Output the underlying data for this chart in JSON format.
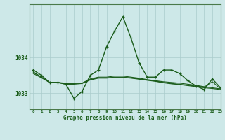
{
  "title": "Graphe pression niveau de la mer (hPa)",
  "background_color": "#cde8e8",
  "grid_color": "#aacccc",
  "line_color": "#1a5c1a",
  "xlim": [
    -0.5,
    23
  ],
  "ylim": [
    1032.55,
    1035.5
  ],
  "yticks": [
    1033,
    1034
  ],
  "xticks": [
    0,
    1,
    2,
    3,
    4,
    5,
    6,
    7,
    8,
    9,
    10,
    11,
    12,
    13,
    14,
    15,
    16,
    17,
    18,
    19,
    20,
    21,
    22,
    23
  ],
  "series_main": [
    1033.65,
    1033.5,
    1033.3,
    1033.3,
    1033.25,
    1032.85,
    1033.05,
    1033.5,
    1033.65,
    1034.3,
    1034.75,
    1035.15,
    1034.55,
    1033.85,
    1033.45,
    1033.45,
    1033.65,
    1033.65,
    1033.55,
    1033.35,
    1033.2,
    1033.1,
    1033.4,
    1033.15
  ],
  "series_flat1": [
    1033.6,
    1033.45,
    1033.3,
    1033.3,
    1033.28,
    1033.28,
    1033.28,
    1033.4,
    1033.45,
    1033.45,
    1033.48,
    1033.48,
    1033.45,
    1033.42,
    1033.38,
    1033.35,
    1033.32,
    1033.3,
    1033.28,
    1033.25,
    1033.22,
    1033.18,
    1033.15,
    1033.12
  ],
  "series_flat2": [
    1033.58,
    1033.45,
    1033.3,
    1033.3,
    1033.27,
    1033.27,
    1033.28,
    1033.38,
    1033.43,
    1033.43,
    1033.45,
    1033.45,
    1033.43,
    1033.4,
    1033.37,
    1033.34,
    1033.3,
    1033.27,
    1033.25,
    1033.22,
    1033.2,
    1033.17,
    1033.32,
    1033.12
  ],
  "series_flat3": [
    1033.55,
    1033.43,
    1033.3,
    1033.3,
    1033.25,
    1033.25,
    1033.27,
    1033.37,
    1033.42,
    1033.42,
    1033.44,
    1033.44,
    1033.42,
    1033.39,
    1033.36,
    1033.33,
    1033.29,
    1033.26,
    1033.24,
    1033.21,
    1033.18,
    1033.15,
    1033.13,
    1033.1
  ],
  "x_hours": [
    0,
    1,
    2,
    3,
    4,
    5,
    6,
    7,
    8,
    9,
    10,
    11,
    12,
    13,
    14,
    15,
    16,
    17,
    18,
    19,
    20,
    21,
    22,
    23
  ]
}
